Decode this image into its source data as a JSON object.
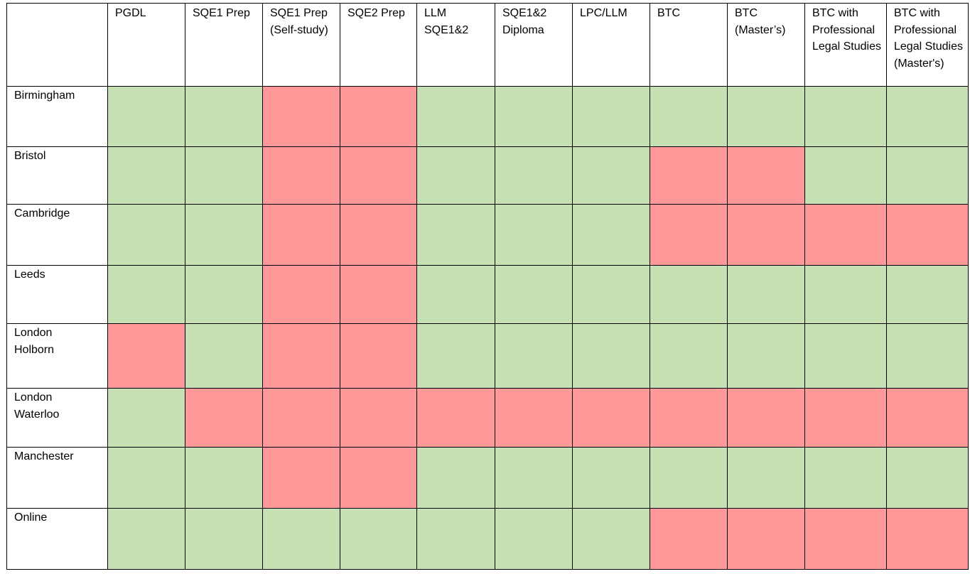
{
  "colors": {
    "available": "#c6e0b4",
    "unavailable": "#ff9999",
    "border": "#000000"
  },
  "columns": [
    {
      "label": "PGDL"
    },
    {
      "label": "SQE1 Prep"
    },
    {
      "label": "SQE1 Prep (Self-study)"
    },
    {
      "label": "SQE2 Prep"
    },
    {
      "label": "LLM SQE1&2"
    },
    {
      "label": "SQE1&2 Diploma"
    },
    {
      "label": "LPC/LLM"
    },
    {
      "label": "BTC"
    },
    {
      "label": "BTC (Master’s)"
    },
    {
      "label": "BTC with Professional Legal Studies"
    },
    {
      "label": "BTC with Professional Legal Studies (Master's)"
    }
  ],
  "rows": [
    {
      "label": "Birmingham",
      "available": [
        true,
        true,
        false,
        false,
        true,
        true,
        true,
        true,
        true,
        true,
        true
      ]
    },
    {
      "label": "Bristol",
      "available": [
        true,
        true,
        false,
        false,
        true,
        true,
        true,
        false,
        false,
        true,
        true
      ]
    },
    {
      "label": "Cambridge",
      "available": [
        true,
        true,
        false,
        false,
        true,
        true,
        true,
        false,
        false,
        false,
        false
      ]
    },
    {
      "label": "Leeds",
      "available": [
        true,
        true,
        false,
        false,
        true,
        true,
        true,
        true,
        true,
        true,
        true
      ]
    },
    {
      "label": "London Holborn",
      "available": [
        false,
        true,
        false,
        false,
        true,
        true,
        true,
        true,
        true,
        true,
        true
      ]
    },
    {
      "label": "London Waterloo",
      "available": [
        true,
        false,
        false,
        false,
        false,
        false,
        false,
        false,
        false,
        false,
        false
      ]
    },
    {
      "label": "Manchester",
      "available": [
        true,
        true,
        false,
        false,
        true,
        true,
        true,
        true,
        true,
        true,
        true
      ]
    },
    {
      "label": "Online",
      "available": [
        true,
        true,
        true,
        true,
        true,
        true,
        true,
        false,
        false,
        false,
        false
      ]
    }
  ]
}
